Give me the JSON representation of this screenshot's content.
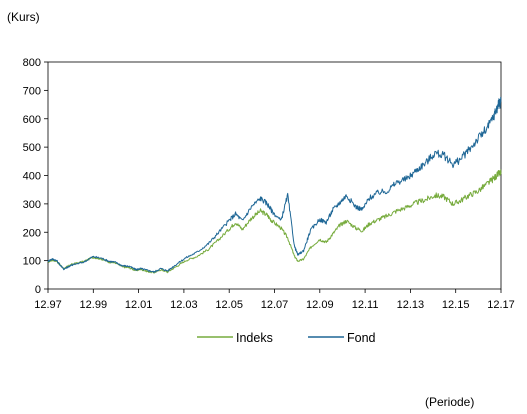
{
  "chart_data": {
    "type": "line",
    "ylabel": "(Kurs)",
    "xlabel": "(Periode)",
    "ylim": [
      0,
      800
    ],
    "yticks": [
      0,
      100,
      200,
      300,
      400,
      500,
      600,
      700,
      800
    ],
    "xticks": [
      "12.97",
      "12.99",
      "12.01",
      "12.03",
      "12.05",
      "12.07",
      "12.09",
      "12.11",
      "12.13",
      "12.15",
      "12.17"
    ],
    "xlim": [
      1997.917,
      2017.917
    ],
    "grid": false,
    "legend_position": "bottom",
    "series": [
      {
        "name": "Indeks",
        "color": "#77ab3d",
        "points": [
          [
            1997.92,
            95
          ],
          [
            1998.1,
            102
          ],
          [
            1998.3,
            98
          ],
          [
            1998.6,
            72
          ],
          [
            1998.8,
            80
          ],
          [
            1999.0,
            88
          ],
          [
            1999.5,
            97
          ],
          [
            1999.9,
            112
          ],
          [
            2000.3,
            105
          ],
          [
            2000.6,
            95
          ],
          [
            2000.9,
            92
          ],
          [
            2001.2,
            78
          ],
          [
            2001.5,
            75
          ],
          [
            2001.8,
            65
          ],
          [
            2002.0,
            70
          ],
          [
            2002.3,
            62
          ],
          [
            2002.6,
            58
          ],
          [
            2002.9,
            68
          ],
          [
            2003.2,
            60
          ],
          [
            2003.6,
            80
          ],
          [
            2004.0,
            100
          ],
          [
            2004.5,
            115
          ],
          [
            2005.0,
            140
          ],
          [
            2005.4,
            170
          ],
          [
            2005.9,
            210
          ],
          [
            2006.2,
            235
          ],
          [
            2006.5,
            210
          ],
          [
            2006.9,
            250
          ],
          [
            2007.3,
            275
          ],
          [
            2007.6,
            260
          ],
          [
            2007.8,
            240
          ],
          [
            2008.2,
            215
          ],
          [
            2008.5,
            180
          ],
          [
            2008.8,
            115
          ],
          [
            2008.95,
            98
          ],
          [
            2009.2,
            105
          ],
          [
            2009.5,
            145
          ],
          [
            2009.9,
            175
          ],
          [
            2010.2,
            165
          ],
          [
            2010.5,
            195
          ],
          [
            2010.8,
            225
          ],
          [
            2011.1,
            240
          ],
          [
            2011.5,
            215
          ],
          [
            2011.8,
            205
          ],
          [
            2012.1,
            230
          ],
          [
            2012.5,
            245
          ],
          [
            2012.9,
            258
          ],
          [
            2013.3,
            275
          ],
          [
            2013.8,
            290
          ],
          [
            2014.2,
            305
          ],
          [
            2014.6,
            315
          ],
          [
            2015.0,
            330
          ],
          [
            2015.4,
            325
          ],
          [
            2015.8,
            300
          ],
          [
            2016.1,
            310
          ],
          [
            2016.5,
            330
          ],
          [
            2016.9,
            345
          ],
          [
            2017.3,
            370
          ],
          [
            2017.6,
            390
          ],
          [
            2017.8,
            405
          ],
          [
            2017.92,
            410
          ]
        ]
      },
      {
        "name": "Fond",
        "color": "#1f6796",
        "points": [
          [
            1997.92,
            98
          ],
          [
            1998.1,
            106
          ],
          [
            1998.3,
            100
          ],
          [
            1998.6,
            70
          ],
          [
            1998.8,
            78
          ],
          [
            1999.0,
            85
          ],
          [
            1999.5,
            95
          ],
          [
            1999.9,
            114
          ],
          [
            2000.3,
            108
          ],
          [
            2000.6,
            98
          ],
          [
            2000.9,
            94
          ],
          [
            2001.2,
            82
          ],
          [
            2001.5,
            80
          ],
          [
            2001.8,
            68
          ],
          [
            2002.0,
            72
          ],
          [
            2002.3,
            66
          ],
          [
            2002.6,
            60
          ],
          [
            2002.9,
            72
          ],
          [
            2003.2,
            64
          ],
          [
            2003.6,
            88
          ],
          [
            2004.0,
            110
          ],
          [
            2004.5,
            130
          ],
          [
            2005.0,
            160
          ],
          [
            2005.4,
            195
          ],
          [
            2005.9,
            240
          ],
          [
            2006.2,
            265
          ],
          [
            2006.5,
            240
          ],
          [
            2006.9,
            290
          ],
          [
            2007.3,
            320
          ],
          [
            2007.6,
            300
          ],
          [
            2007.8,
            275
          ],
          [
            2008.2,
            240
          ],
          [
            2008.5,
            330
          ],
          [
            2008.8,
            150
          ],
          [
            2008.95,
            120
          ],
          [
            2009.2,
            135
          ],
          [
            2009.5,
            205
          ],
          [
            2009.9,
            245
          ],
          [
            2010.2,
            235
          ],
          [
            2010.5,
            280
          ],
          [
            2010.8,
            305
          ],
          [
            2011.1,
            330
          ],
          [
            2011.5,
            290
          ],
          [
            2011.8,
            280
          ],
          [
            2012.1,
            320
          ],
          [
            2012.5,
            340
          ],
          [
            2012.9,
            345
          ],
          [
            2013.3,
            375
          ],
          [
            2013.8,
            390
          ],
          [
            2014.2,
            420
          ],
          [
            2014.6,
            445
          ],
          [
            2015.0,
            480
          ],
          [
            2015.4,
            470
          ],
          [
            2015.8,
            440
          ],
          [
            2016.1,
            455
          ],
          [
            2016.5,
            490
          ],
          [
            2016.9,
            530
          ],
          [
            2017.3,
            565
          ],
          [
            2017.6,
            610
          ],
          [
            2017.8,
            650
          ],
          [
            2017.92,
            660
          ]
        ]
      }
    ]
  }
}
